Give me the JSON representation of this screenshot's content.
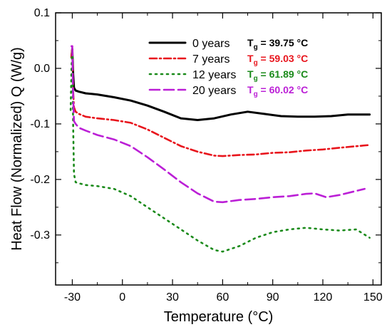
{
  "chart_data": {
    "type": "line",
    "xlabel": "Temperature (°C)",
    "ylabel": "Heat Flow (Normalized) Q (W/g)",
    "xlim": [
      -40,
      155
    ],
    "ylim": [
      -0.39,
      0.1
    ],
    "xticks": [
      -30,
      0,
      30,
      60,
      90,
      120,
      150
    ],
    "xtick_labels": [
      "-30",
      "0",
      "30",
      "60",
      "90",
      "120",
      "150"
    ],
    "yticks": [
      0.1,
      0.0,
      -0.1,
      -0.2,
      -0.3
    ],
    "ytick_labels": [
      "0.1",
      "0.0",
      "-0.1",
      "-0.2",
      "-0.3"
    ],
    "legend_position": "top-right",
    "series": [
      {
        "name": "0 years",
        "tg_label": "T",
        "tg_sub": "g",
        "tg_value": " = 39.75 °C",
        "color": "#000000",
        "dash": "",
        "x": [
          -30.5,
          -30,
          -29.5,
          -29,
          -28,
          -26,
          -22,
          -15,
          -5,
          5,
          15,
          25,
          35,
          45,
          55,
          65,
          75,
          85,
          95,
          105,
          115,
          125,
          135,
          148
        ],
        "y": [
          0.02,
          0.035,
          -0.01,
          -0.035,
          -0.04,
          -0.042,
          -0.045,
          -0.047,
          -0.052,
          -0.058,
          -0.067,
          -0.078,
          -0.09,
          -0.093,
          -0.09,
          -0.083,
          -0.078,
          -0.082,
          -0.086,
          -0.087,
          -0.087,
          -0.086,
          -0.083,
          -0.083
        ]
      },
      {
        "name": "7 years",
        "tg_label": "T",
        "tg_sub": "g",
        "tg_value": " = 59.03 °C",
        "color": "#e8141c",
        "dash": "10,4,2,4",
        "x": [
          -30.5,
          -30,
          -29.5,
          -29,
          -28,
          -26,
          -22,
          -15,
          -5,
          5,
          15,
          25,
          35,
          45,
          55,
          60,
          70,
          80,
          90,
          100,
          110,
          120,
          130,
          148
        ],
        "y": [
          0.02,
          0.04,
          -0.04,
          -0.07,
          -0.078,
          -0.082,
          -0.087,
          -0.09,
          -0.093,
          -0.098,
          -0.11,
          -0.125,
          -0.14,
          -0.15,
          -0.157,
          -0.158,
          -0.156,
          -0.155,
          -0.152,
          -0.151,
          -0.148,
          -0.146,
          -0.143,
          -0.138
        ]
      },
      {
        "name": "12 years",
        "tg_label": "T",
        "tg_sub": "g",
        "tg_value": " = 61.89 °C",
        "color": "#1a8a1a",
        "dash": "2,6",
        "x": [
          -31,
          -30.5,
          -30,
          -29.5,
          -29,
          -28,
          -26,
          -22,
          -15,
          -5,
          5,
          15,
          25,
          35,
          45,
          55,
          60,
          70,
          80,
          90,
          100,
          110,
          120,
          130,
          140,
          148
        ],
        "y": [
          -0.075,
          0.0,
          0.035,
          -0.1,
          -0.19,
          -0.205,
          -0.207,
          -0.21,
          -0.212,
          -0.217,
          -0.23,
          -0.25,
          -0.27,
          -0.29,
          -0.31,
          -0.327,
          -0.33,
          -0.32,
          -0.305,
          -0.295,
          -0.29,
          -0.287,
          -0.29,
          -0.292,
          -0.29,
          -0.305
        ]
      },
      {
        "name": "20 years",
        "tg_label": "T",
        "tg_sub": "g",
        "tg_value": " = 60.02 °C",
        "color": "#bb1fd6",
        "dash": "14,6",
        "x": [
          -30.5,
          -30,
          -29.5,
          -29,
          -28,
          -26,
          -22,
          -15,
          -5,
          5,
          15,
          25,
          35,
          45,
          55,
          60,
          70,
          80,
          90,
          100,
          110,
          115,
          122,
          130,
          145
        ],
        "y": [
          0.04,
          0.04,
          -0.05,
          -0.095,
          -0.1,
          -0.107,
          -0.112,
          -0.12,
          -0.128,
          -0.14,
          -0.16,
          -0.182,
          -0.205,
          -0.225,
          -0.24,
          -0.241,
          -0.237,
          -0.235,
          -0.232,
          -0.23,
          -0.226,
          -0.225,
          -0.232,
          -0.228,
          -0.217
        ]
      }
    ]
  }
}
